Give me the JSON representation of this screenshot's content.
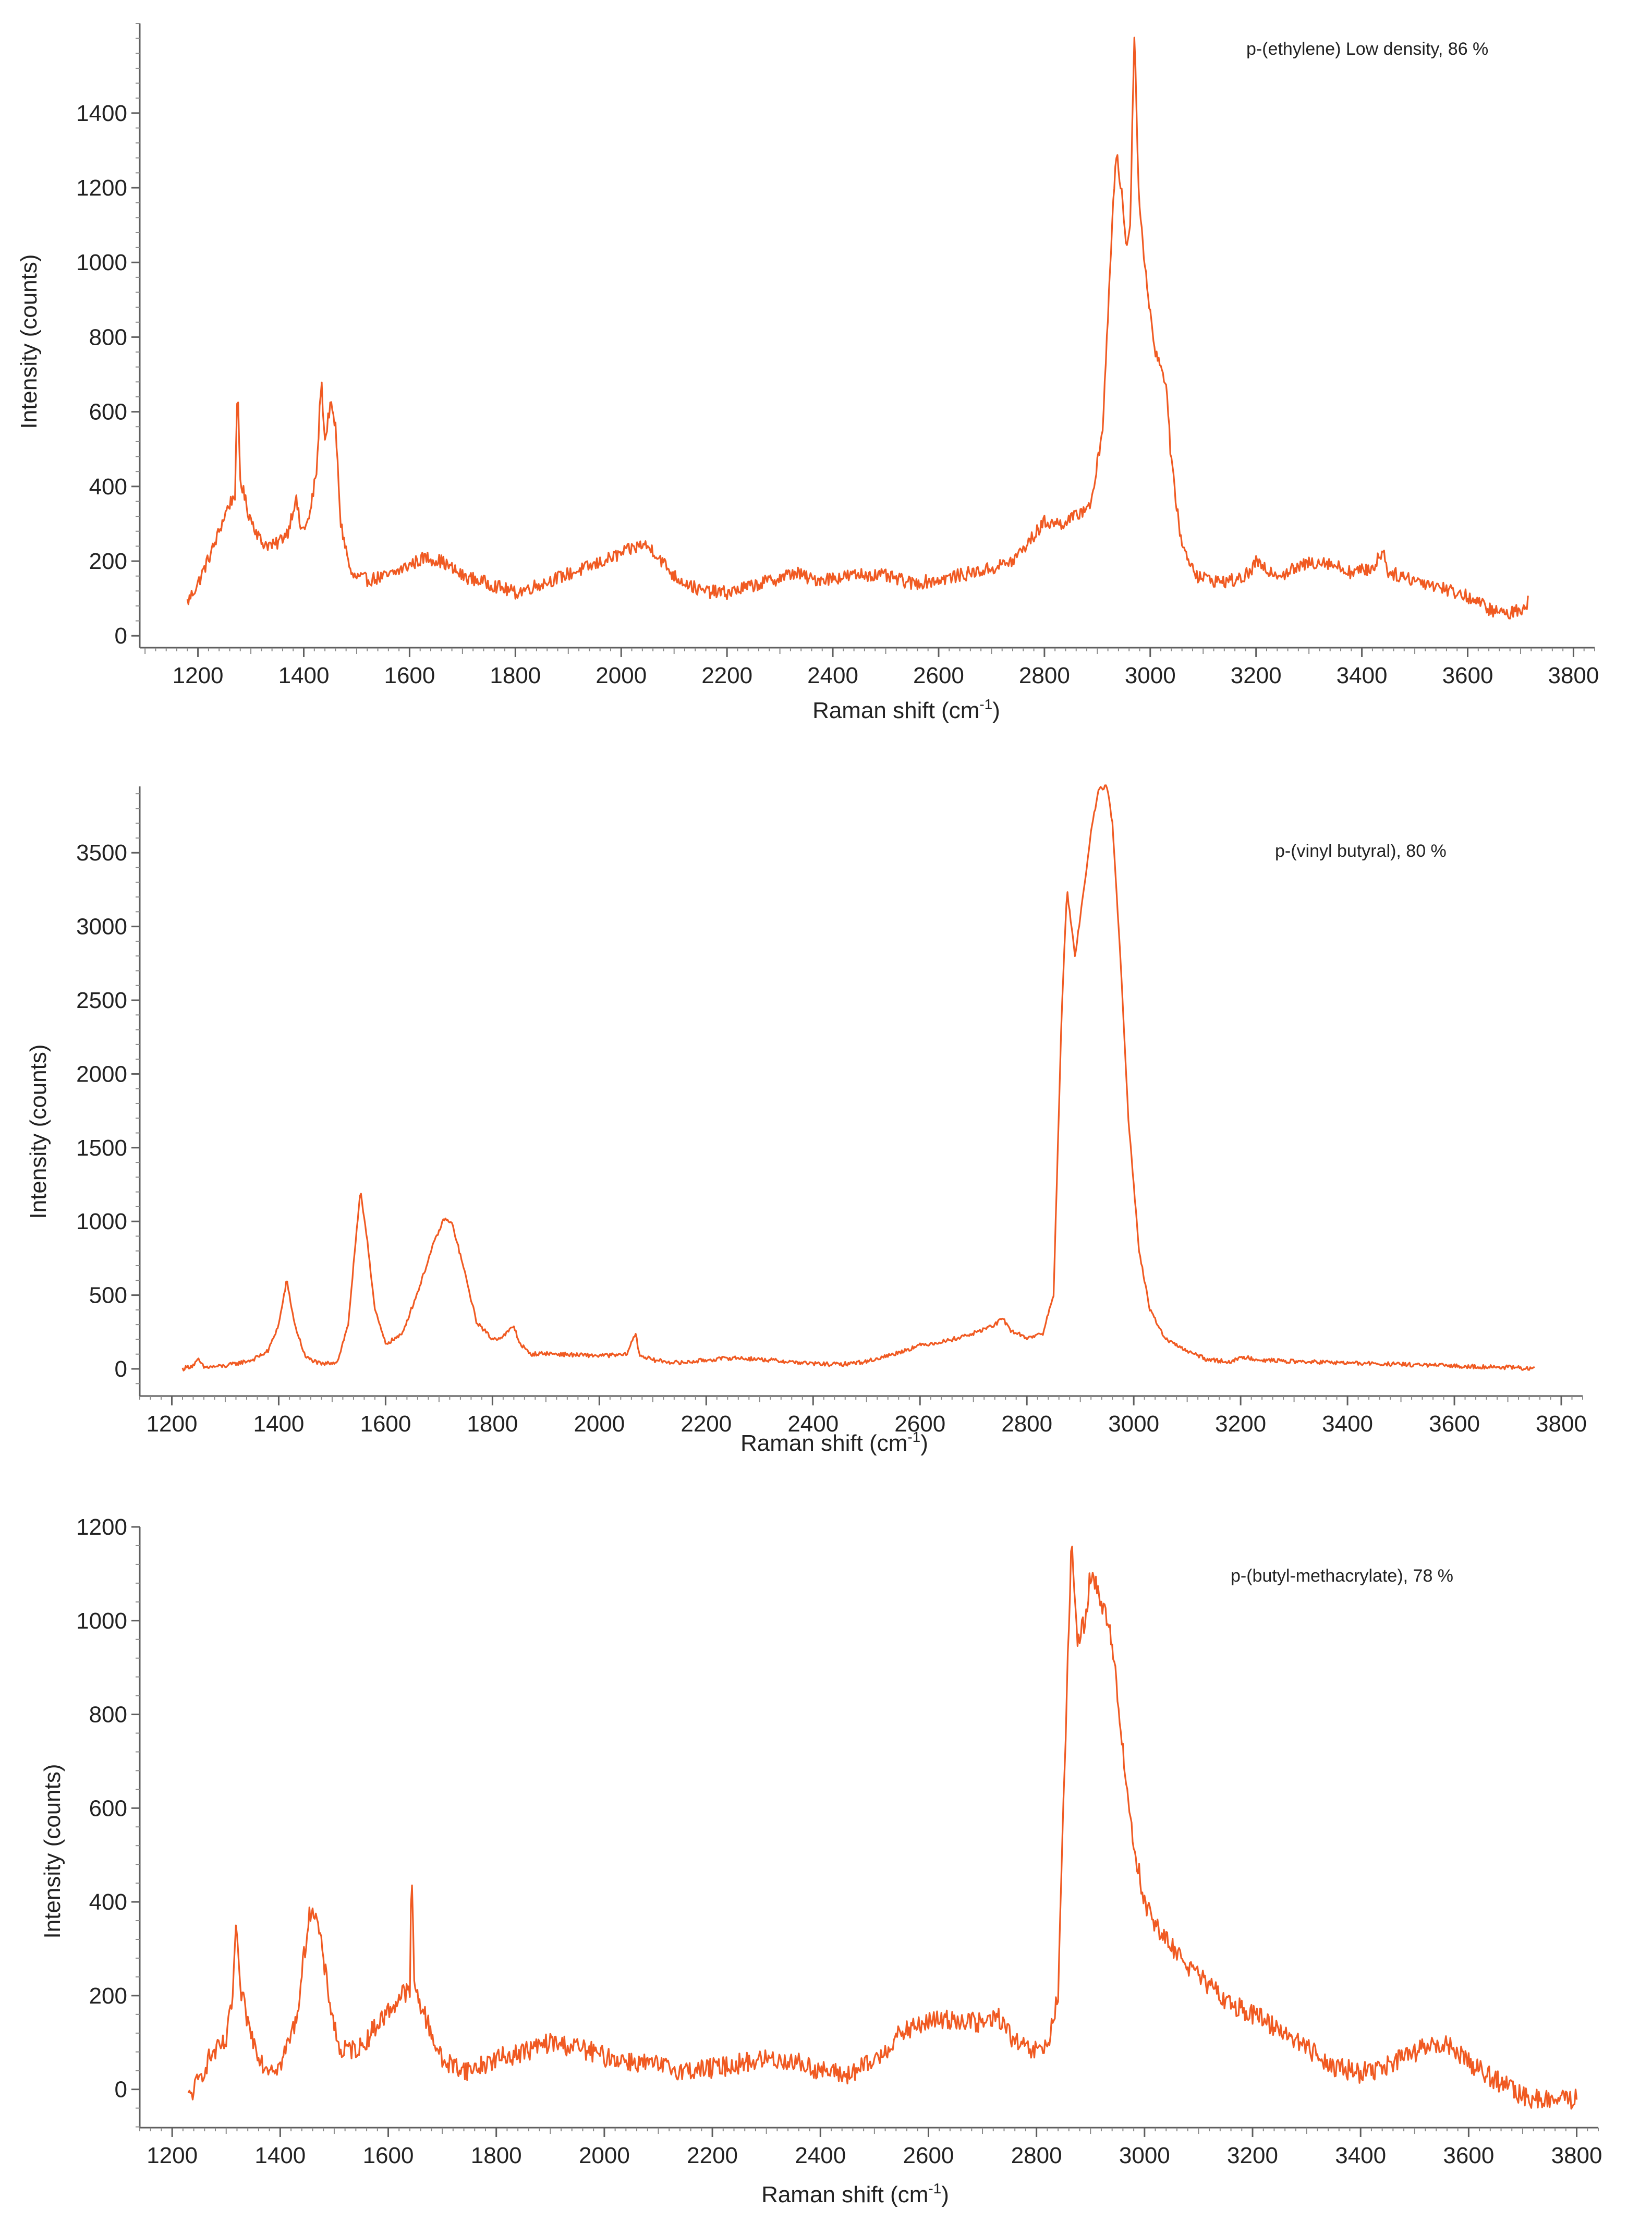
{
  "chart_data": [
    {
      "type": "line",
      "id": "pe",
      "annotation": "p-(ethylene) Low density, 86 %",
      "xlabel": "Raman shift (cm",
      "xlabel_sup": "-1",
      "xlabel_end": ")",
      "ylabel": "Intensity (counts)",
      "xlim": [
        1090,
        3840
      ],
      "ylim": [
        -50,
        1640
      ],
      "xticks": [
        1200,
        1400,
        1600,
        1800,
        2000,
        2200,
        2400,
        2600,
        2800,
        3000,
        3200,
        3400,
        3600,
        3800
      ],
      "yticks": [
        0,
        200,
        400,
        600,
        800,
        1000,
        1200,
        1400
      ],
      "series": [
        {
          "name": "p-(ethylene) Low density",
          "color": "#f05a22",
          "noise": 18,
          "points": [
            [
              1180,
              90
            ],
            [
              1200,
              140
            ],
            [
              1230,
              240
            ],
            [
              1255,
              340
            ],
            [
              1270,
              380
            ],
            [
              1275,
              660
            ],
            [
              1280,
              420
            ],
            [
              1295,
              330
            ],
            [
              1320,
              250
            ],
            [
              1345,
              240
            ],
            [
              1370,
              280
            ],
            [
              1385,
              370
            ],
            [
              1395,
              280
            ],
            [
              1410,
              310
            ],
            [
              1425,
              450
            ],
            [
              1433,
              690
            ],
            [
              1440,
              520
            ],
            [
              1450,
              620
            ],
            [
              1460,
              560
            ],
            [
              1470,
              300
            ],
            [
              1490,
              160
            ],
            [
              1520,
              150
            ],
            [
              1560,
              160
            ],
            [
              1600,
              190
            ],
            [
              1630,
              210
            ],
            [
              1660,
              200
            ],
            [
              1700,
              160
            ],
            [
              1750,
              140
            ],
            [
              1800,
              115
            ],
            [
              1850,
              140
            ],
            [
              1900,
              165
            ],
            [
              1950,
              190
            ],
            [
              2000,
              220
            ],
            [
              2040,
              245
            ],
            [
              2060,
              230
            ],
            [
              2100,
              160
            ],
            [
              2150,
              120
            ],
            [
              2200,
              115
            ],
            [
              2250,
              135
            ],
            [
              2300,
              155
            ],
            [
              2330,
              170
            ],
            [
              2360,
              150
            ],
            [
              2400,
              155
            ],
            [
              2460,
              165
            ],
            [
              2500,
              160
            ],
            [
              2550,
              140
            ],
            [
              2600,
              150
            ],
            [
              2650,
              165
            ],
            [
              2700,
              180
            ],
            [
              2740,
              200
            ],
            [
              2770,
              250
            ],
            [
              2800,
              305
            ],
            [
              2830,
              300
            ],
            [
              2860,
              320
            ],
            [
              2890,
              360
            ],
            [
              2910,
              560
            ],
            [
              2925,
              1000
            ],
            [
              2935,
              1300
            ],
            [
              2945,
              1200
            ],
            [
              2955,
              1040
            ],
            [
              2962,
              1100
            ],
            [
              2970,
              1620
            ],
            [
              2978,
              1200
            ],
            [
              2990,
              980
            ],
            [
              3010,
              760
            ],
            [
              3030,
              680
            ],
            [
              3040,
              460
            ],
            [
              3060,
              240
            ],
            [
              3090,
              160
            ],
            [
              3130,
              145
            ],
            [
              3170,
              150
            ],
            [
              3195,
              180
            ],
            [
              3200,
              205
            ],
            [
              3210,
              180
            ],
            [
              3250,
              165
            ],
            [
              3300,
              195
            ],
            [
              3330,
              200
            ],
            [
              3380,
              170
            ],
            [
              3420,
              180
            ],
            [
              3440,
              230
            ],
            [
              3450,
              170
            ],
            [
              3500,
              150
            ],
            [
              3540,
              135
            ],
            [
              3570,
              120
            ],
            [
              3600,
              105
            ],
            [
              3650,
              65
            ],
            [
              3680,
              60
            ],
            [
              3710,
              80
            ],
            [
              3715,
              95
            ]
          ]
        }
      ]
    },
    {
      "type": "line",
      "id": "pvb",
      "annotation": "p-(vinyl butyral), 80 %",
      "xlabel": "Raman shift (cm",
      "xlabel_sup": "-1",
      "xlabel_end": ")",
      "ylabel": "Intensity (counts)",
      "xlim": [
        1140,
        3840
      ],
      "ylim": [
        -230,
        3950
      ],
      "xticks": [
        1200,
        1400,
        1600,
        1800,
        2000,
        2200,
        2400,
        2600,
        2800,
        3000,
        3200,
        3400,
        3600,
        3800
      ],
      "yticks": [
        0,
        500,
        1000,
        1500,
        2000,
        2500,
        3000,
        3500
      ],
      "series": [
        {
          "name": "p-(vinyl butyral)",
          "color": "#f05a22",
          "noise": 14,
          "points": [
            [
              1220,
              0
            ],
            [
              1240,
              25
            ],
            [
              1250,
              60
            ],
            [
              1260,
              10
            ],
            [
              1300,
              20
            ],
            [
              1350,
              60
            ],
            [
              1380,
              120
            ],
            [
              1400,
              300
            ],
            [
              1415,
              600
            ],
            [
              1430,
              300
            ],
            [
              1450,
              80
            ],
            [
              1480,
              30
            ],
            [
              1510,
              50
            ],
            [
              1530,
              300
            ],
            [
              1545,
              900
            ],
            [
              1553,
              1200
            ],
            [
              1565,
              900
            ],
            [
              1580,
              400
            ],
            [
              1600,
              170
            ],
            [
              1630,
              230
            ],
            [
              1660,
              520
            ],
            [
              1690,
              850
            ],
            [
              1710,
              1020
            ],
            [
              1725,
              980
            ],
            [
              1745,
              700
            ],
            [
              1770,
              320
            ],
            [
              1800,
              200
            ],
            [
              1820,
              220
            ],
            [
              1840,
              290
            ],
            [
              1850,
              180
            ],
            [
              1870,
              100
            ],
            [
              1900,
              105
            ],
            [
              1950,
              95
            ],
            [
              2000,
              90
            ],
            [
              2050,
              95
            ],
            [
              2068,
              240
            ],
            [
              2075,
              95
            ],
            [
              2100,
              60
            ],
            [
              2150,
              40
            ],
            [
              2200,
              60
            ],
            [
              2250,
              75
            ],
            [
              2300,
              65
            ],
            [
              2350,
              50
            ],
            [
              2400,
              35
            ],
            [
              2450,
              30
            ],
            [
              2500,
              50
            ],
            [
              2550,
              100
            ],
            [
              2600,
              160
            ],
            [
              2650,
              190
            ],
            [
              2700,
              240
            ],
            [
              2740,
              300
            ],
            [
              2755,
              340
            ],
            [
              2770,
              260
            ],
            [
              2800,
              210
            ],
            [
              2830,
              240
            ],
            [
              2850,
              500
            ],
            [
              2865,
              2400
            ],
            [
              2875,
              3250
            ],
            [
              2890,
              2800
            ],
            [
              2905,
              3200
            ],
            [
              2920,
              3650
            ],
            [
              2935,
              3930
            ],
            [
              2950,
              3950
            ],
            [
              2960,
              3700
            ],
            [
              2975,
              2800
            ],
            [
              2990,
              1700
            ],
            [
              3010,
              800
            ],
            [
              3030,
              400
            ],
            [
              3060,
              200
            ],
            [
              3100,
              120
            ],
            [
              3140,
              60
            ],
            [
              3180,
              50
            ],
            [
              3210,
              80
            ],
            [
              3240,
              60
            ],
            [
              3300,
              50
            ],
            [
              3350,
              45
            ],
            [
              3400,
              40
            ],
            [
              3500,
              30
            ],
            [
              3600,
              20
            ],
            [
              3700,
              10
            ],
            [
              3750,
              0
            ]
          ]
        }
      ]
    },
    {
      "type": "line",
      "id": "pbma",
      "annotation": "p-(butyl-methacrylate), 78 %",
      "xlabel": "Raman shift (cm",
      "xlabel_sup": "-1",
      "xlabel_end": ")",
      "ylabel": "Intensity (counts)",
      "xlim": [
        1140,
        3840
      ],
      "ylim": [
        -95,
        1200
      ],
      "xticks": [
        1200,
        1400,
        1600,
        1800,
        2000,
        2200,
        2400,
        2600,
        2800,
        3000,
        3200,
        3400,
        3600,
        3800
      ],
      "yticks": [
        0,
        200,
        400,
        600,
        800,
        1000,
        1200
      ],
      "series": [
        {
          "name": "p-(butyl-methacrylate)",
          "color": "#f05a22",
          "noise": 22,
          "points": [
            [
              1230,
              -20
            ],
            [
              1250,
              20
            ],
            [
              1270,
              70
            ],
            [
              1300,
              100
            ],
            [
              1312,
              200
            ],
            [
              1318,
              350
            ],
            [
              1325,
              220
            ],
            [
              1345,
              120
            ],
            [
              1370,
              50
            ],
            [
              1400,
              50
            ],
            [
              1430,
              150
            ],
            [
              1450,
              340
            ],
            [
              1458,
              395
            ],
            [
              1470,
              350
            ],
            [
              1490,
              200
            ],
            [
              1510,
              80
            ],
            [
              1550,
              90
            ],
            [
              1580,
              140
            ],
            [
              1610,
              180
            ],
            [
              1630,
              210
            ],
            [
              1640,
              200
            ],
            [
              1643,
              500
            ],
            [
              1648,
              220
            ],
            [
              1670,
              150
            ],
            [
              1700,
              60
            ],
            [
              1750,
              40
            ],
            [
              1800,
              65
            ],
            [
              1850,
              80
            ],
            [
              1900,
              100
            ],
            [
              1950,
              90
            ],
            [
              2000,
              70
            ],
            [
              2050,
              60
            ],
            [
              2100,
              50
            ],
            [
              2150,
              40
            ],
            [
              2200,
              45
            ],
            [
              2250,
              55
            ],
            [
              2300,
              65
            ],
            [
              2350,
              60
            ],
            [
              2400,
              40
            ],
            [
              2450,
              30
            ],
            [
              2500,
              60
            ],
            [
              2550,
              120
            ],
            [
              2600,
              145
            ],
            [
              2650,
              150
            ],
            [
              2700,
              140
            ],
            [
              2730,
              155
            ],
            [
              2760,
              100
            ],
            [
              2790,
              80
            ],
            [
              2820,
              90
            ],
            [
              2840,
              200
            ],
            [
              2855,
              800
            ],
            [
              2865,
              1170
            ],
            [
              2875,
              960
            ],
            [
              2890,
              1000
            ],
            [
              2900,
              1100
            ],
            [
              2915,
              1060
            ],
            [
              2930,
              1000
            ],
            [
              2940,
              960
            ],
            [
              2960,
              720
            ],
            [
              2980,
              520
            ],
            [
              3000,
              400
            ],
            [
              3030,
              330
            ],
            [
              3070,
              280
            ],
            [
              3100,
              240
            ],
            [
              3150,
              190
            ],
            [
              3200,
              160
            ],
            [
              3250,
              130
            ],
            [
              3300,
              90
            ],
            [
              3350,
              50
            ],
            [
              3400,
              35
            ],
            [
              3450,
              50
            ],
            [
              3500,
              80
            ],
            [
              3540,
              95
            ],
            [
              3570,
              90
            ],
            [
              3600,
              60
            ],
            [
              3650,
              20
            ],
            [
              3700,
              -15
            ],
            [
              3750,
              -25
            ],
            [
              3800,
              -20
            ]
          ]
        }
      ]
    }
  ]
}
